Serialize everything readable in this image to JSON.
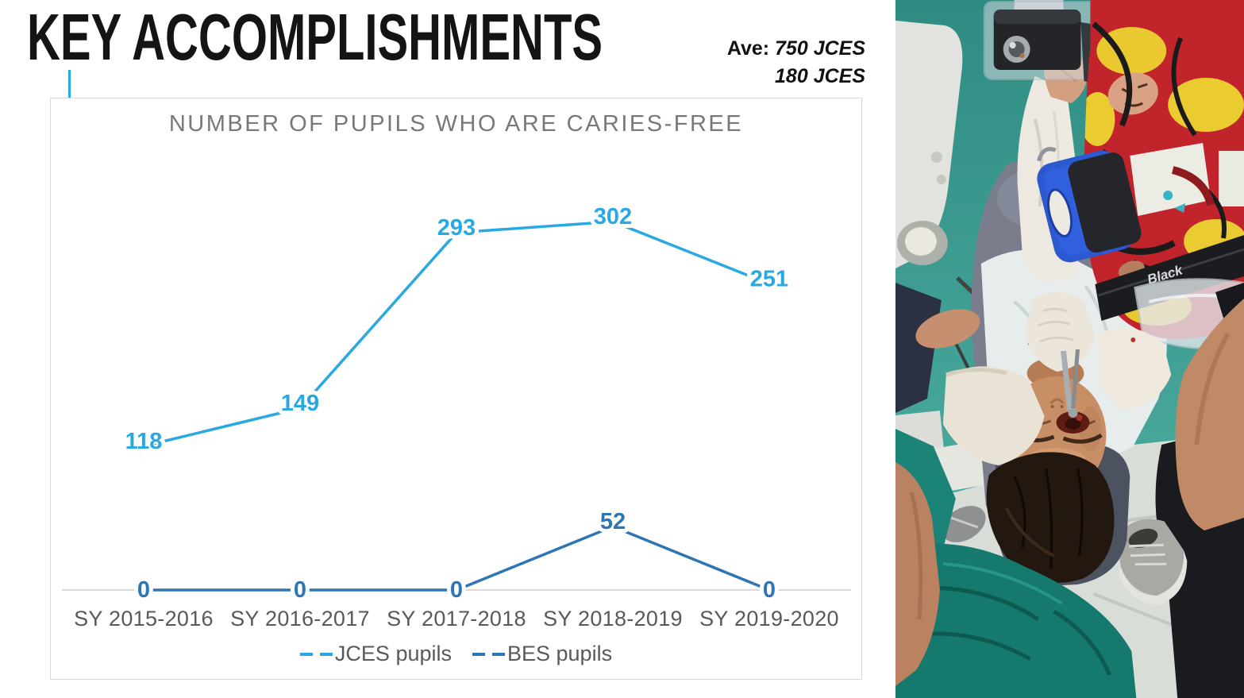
{
  "slide": {
    "title": "KEY ACCOMPLISHMENTS",
    "annotation": {
      "prefix": "Ave:",
      "line1": "750 JCES",
      "line2": "180 JCES"
    }
  },
  "chart_data": {
    "type": "line",
    "title": "NUMBER OF PUPILS WHO ARE CARIES-FREE",
    "categories": [
      "SY 2015-2016",
      "SY 2016-2017",
      "SY 2017-2018",
      "SY 2018-2019",
      "SY 2019-2020"
    ],
    "series": [
      {
        "name": "JCES pupils",
        "color": "#29A9E1",
        "values": [
          118,
          149,
          293,
          302,
          251
        ]
      },
      {
        "name": "BES pupils",
        "color": "#2E75B6",
        "values": [
          0,
          0,
          0,
          52,
          0
        ]
      }
    ],
    "ylim": [
      0,
      350
    ],
    "grid": false,
    "data_labels": true,
    "legend_position": "bottom",
    "axis_color": "#D9D9D9",
    "category_label_color": "#595959",
    "title_color": "#787878"
  },
  "photo": {
    "strap_text": "Black"
  },
  "colors": {
    "accent_blue": "#29A9E1",
    "card_border": "#D9D9D9",
    "slide_background": "#FFFFFF"
  }
}
